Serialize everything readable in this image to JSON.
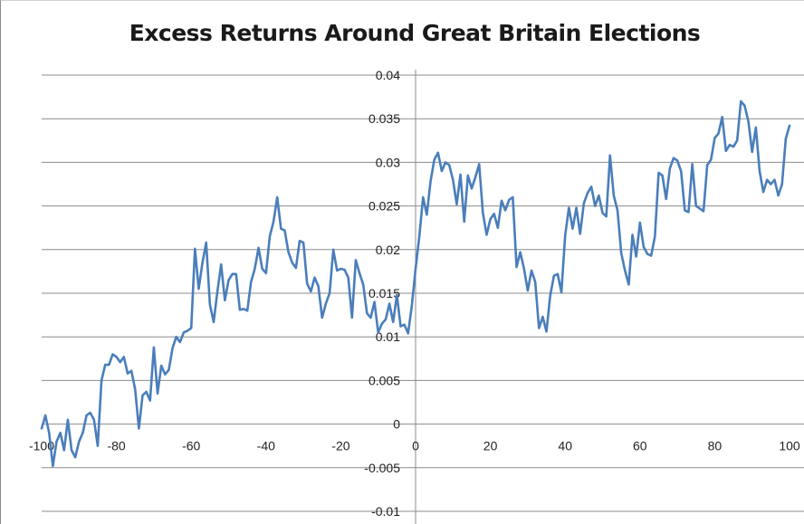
{
  "chart_data": {
    "type": "line",
    "title": "Excess Returns Around Great Britain Elections",
    "xlim": [
      -100,
      100
    ],
    "ylim": [
      -0.01,
      0.04
    ],
    "x_ticks": [
      "-100",
      "-80",
      "-60",
      "-40",
      "-20",
      "0",
      "20",
      "40",
      "60",
      "80",
      "100"
    ],
    "y_ticks": [
      "0.04",
      "0.035",
      "0.03",
      "0.025",
      "0.02",
      "0.015",
      "0.01",
      "0.005",
      "0",
      "-0.005",
      "-0.01"
    ],
    "grid": true,
    "line_color": "#4a7ebb",
    "series": [
      {
        "x_start": -100,
        "x_step": 1,
        "values": [
          -0.0005,
          0.001,
          -0.001,
          -0.0048,
          -0.002,
          -0.001,
          -0.003,
          0.0005,
          -0.003,
          -0.0038,
          -0.002,
          -0.001,
          0.001,
          0.0013,
          0.0005,
          -0.0025,
          0.005,
          0.0068,
          0.0068,
          0.008,
          0.0077,
          0.0071,
          0.0077,
          0.0058,
          0.0061,
          0.004,
          -0.0005,
          0.0033,
          0.0037,
          0.0027,
          0.0088,
          0.0035,
          0.0067,
          0.0057,
          0.0062,
          0.0087,
          0.01,
          0.0094,
          0.0105,
          0.0107,
          0.011,
          0.0201,
          0.0155,
          0.0185,
          0.0208,
          0.0137,
          0.0117,
          0.0152,
          0.0183,
          0.0142,
          0.0165,
          0.0172,
          0.0172,
          0.0131,
          0.0132,
          0.013,
          0.0163,
          0.0178,
          0.0202,
          0.0178,
          0.0173,
          0.0215,
          0.0232,
          0.026,
          0.0224,
          0.0222,
          0.0197,
          0.0185,
          0.0179,
          0.021,
          0.0208,
          0.0161,
          0.0152,
          0.0168,
          0.0158,
          0.0122,
          0.0138,
          0.015,
          0.02,
          0.0176,
          0.0178,
          0.0177,
          0.0168,
          0.0122,
          0.0188,
          0.0173,
          0.016,
          0.0127,
          0.0122,
          0.014,
          0.0105,
          0.0115,
          0.012,
          0.0138,
          0.0117,
          0.0148,
          0.0112,
          0.0114,
          0.0104,
          0.0136,
          0.0178,
          0.0215,
          0.026,
          0.024,
          0.0278,
          0.0303,
          0.0311,
          0.029,
          0.03,
          0.0297,
          0.028,
          0.0252,
          0.0286,
          0.0232,
          0.0285,
          0.027,
          0.0283,
          0.0298,
          0.0242,
          0.0217,
          0.0235,
          0.0241,
          0.0225,
          0.0256,
          0.0245,
          0.0257,
          0.026,
          0.018,
          0.0197,
          0.0178,
          0.0153,
          0.0176,
          0.0163,
          0.011,
          0.0123,
          0.0106,
          0.0147,
          0.017,
          0.0172,
          0.0151,
          0.0216,
          0.0248,
          0.0224,
          0.0248,
          0.0218,
          0.0253,
          0.0265,
          0.0272,
          0.025,
          0.0262,
          0.0242,
          0.0238,
          0.0308,
          0.0262,
          0.0245,
          0.0196,
          0.0176,
          0.016,
          0.0217,
          0.0192,
          0.0231,
          0.0203,
          0.0195,
          0.0193,
          0.0215,
          0.0288,
          0.0285,
          0.0258,
          0.0293,
          0.0305,
          0.0302,
          0.029,
          0.0245,
          0.0243,
          0.0298,
          0.025,
          0.0247,
          0.0244,
          0.0297,
          0.0303,
          0.0328,
          0.0333,
          0.0352,
          0.0313,
          0.032,
          0.0318,
          0.0325,
          0.037,
          0.0365,
          0.0347,
          0.0312,
          0.034,
          0.029,
          0.0266,
          0.028,
          0.0275,
          0.028,
          0.0262,
          0.0275,
          0.0327,
          0.0342
        ]
      }
    ]
  }
}
